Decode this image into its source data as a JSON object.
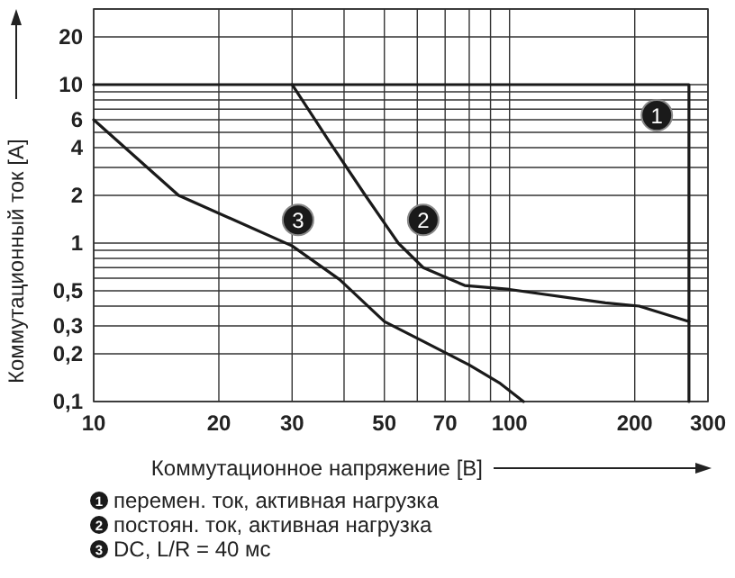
{
  "chart_data": {
    "type": "line",
    "xlabel": "Коммутационное напряжение [В]",
    "ylabel": "Коммутационный ток [A]",
    "log": "xy",
    "grid": true,
    "legend": "bottom",
    "line_style": "solid",
    "marker": "none",
    "xlim": [
      10,
      300
    ],
    "ylim": [
      0.1,
      30
    ],
    "xticks": [
      10,
      20,
      30,
      {
        "value": 40,
        "label": null
      },
      50,
      {
        "value": 60,
        "label": null
      },
      70,
      {
        "value": 80,
        "label": null
      },
      {
        "value": 90,
        "label": null
      },
      100,
      200,
      300
    ],
    "yticks": [
      {
        "value": 0.1,
        "label": "0,1"
      },
      {
        "value": 0.2,
        "label": "0,2"
      },
      {
        "value": 0.3,
        "label": "0,3"
      },
      {
        "value": 0.4,
        "label": null
      },
      {
        "value": 0.5,
        "label": "0,5"
      },
      {
        "value": 0.6,
        "label": null
      },
      {
        "value": 0.7,
        "label": null
      },
      {
        "value": 0.8,
        "label": null
      },
      {
        "value": 0.9,
        "label": null
      },
      1,
      2,
      {
        "value": 3,
        "label": null
      },
      4,
      {
        "value": 5,
        "label": null
      },
      6,
      {
        "value": 7,
        "label": null
      },
      {
        "value": 8,
        "label": null
      },
      {
        "value": 9,
        "label": null
      },
      10,
      20,
      {
        "value": 30,
        "label": null
      }
    ],
    "series": [
      {
        "name": "перемен. ток, активная нагрузка",
        "color": "#1a1a1a",
        "x": [
          10,
          270,
          270
        ],
        "values": [
          10,
          10,
          0.1
        ]
      },
      {
        "name": "постоян. ток, активная нагрузка",
        "color": "#1a1a1a",
        "x": [
          30,
          37,
          45,
          54,
          62,
          78,
          100,
          170,
          205,
          270
        ],
        "values": [
          10,
          4.3,
          2,
          1,
          0.7,
          0.54,
          0.51,
          0.42,
          0.4,
          0.32
        ]
      },
      {
        "name": "DC, L/R = 40 мс",
        "color": "#1a1a1a",
        "x": [
          10,
          16,
          30,
          39,
          50,
          62,
          80,
          95,
          108
        ],
        "values": [
          6,
          2,
          0.96,
          0.59,
          0.32,
          0.24,
          0.17,
          0.13,
          0.1
        ]
      }
    ],
    "annotations": [
      {
        "text": "1",
        "x": 226,
        "y": 6.4
      },
      {
        "text": "2",
        "x": 62,
        "y": 1.4
      },
      {
        "text": "3",
        "x": 31,
        "y": 1.4
      }
    ]
  }
}
